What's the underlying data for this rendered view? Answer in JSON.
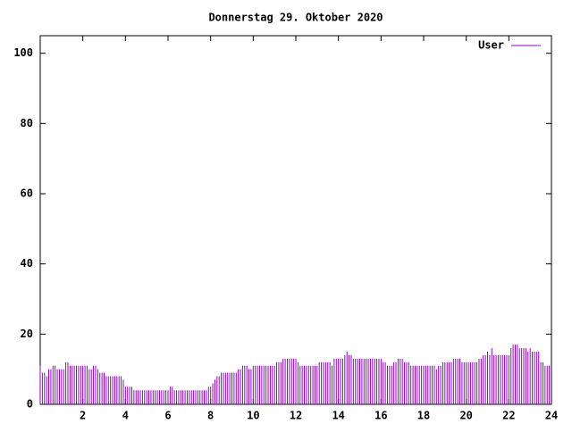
{
  "chart_data": {
    "type": "impulse",
    "title": "Donnerstag 29. Oktober 2020",
    "x": [
      0,
      0.1,
      0.2,
      0.3,
      0.4,
      0.5,
      0.6,
      0.7,
      0.8,
      0.9,
      1,
      1.1,
      1.2,
      1.3,
      1.4,
      1.5,
      1.6,
      1.7,
      1.8,
      1.9,
      2,
      2.1,
      2.2,
      2.3,
      2.4,
      2.5,
      2.6,
      2.7,
      2.8,
      2.9,
      3,
      3.1,
      3.2,
      3.3,
      3.4,
      3.5,
      3.6,
      3.7,
      3.8,
      3.9,
      4,
      4.1,
      4.2,
      4.3,
      4.4,
      4.5,
      4.6,
      4.7,
      4.8,
      4.9,
      5,
      5.1,
      5.2,
      5.3,
      5.4,
      5.5,
      5.6,
      5.7,
      5.8,
      5.9,
      6,
      6.1,
      6.2,
      6.3,
      6.4,
      6.5,
      6.6,
      6.7,
      6.8,
      6.9,
      7,
      7.1,
      7.2,
      7.3,
      7.4,
      7.5,
      7.6,
      7.7,
      7.8,
      7.9,
      8,
      8.1,
      8.2,
      8.3,
      8.4,
      8.5,
      8.6,
      8.7,
      8.8,
      8.9,
      9,
      9.1,
      9.2,
      9.3,
      9.4,
      9.5,
      9.6,
      9.7,
      9.8,
      9.9,
      10,
      10.1,
      10.2,
      10.3,
      10.4,
      10.5,
      10.6,
      10.7,
      10.8,
      10.9,
      11,
      11.1,
      11.2,
      11.3,
      11.4,
      11.5,
      11.6,
      11.7,
      11.8,
      11.9,
      12,
      12.1,
      12.2,
      12.3,
      12.4,
      12.5,
      12.6,
      12.7,
      12.8,
      12.9,
      13,
      13.1,
      13.2,
      13.3,
      13.4,
      13.5,
      13.6,
      13.7,
      13.8,
      13.9,
      14,
      14.1,
      14.2,
      14.3,
      14.4,
      14.5,
      14.6,
      14.7,
      14.8,
      14.9,
      15,
      15.1,
      15.2,
      15.3,
      15.4,
      15.5,
      15.6,
      15.7,
      15.8,
      15.9,
      16,
      16.1,
      16.2,
      16.3,
      16.4,
      16.5,
      16.6,
      16.7,
      16.8,
      16.9,
      17,
      17.1,
      17.2,
      17.3,
      17.4,
      17.5,
      17.6,
      17.7,
      17.8,
      17.9,
      18,
      18.1,
      18.2,
      18.3,
      18.4,
      18.5,
      18.6,
      18.7,
      18.8,
      18.9,
      19,
      19.1,
      19.2,
      19.3,
      19.4,
      19.5,
      19.6,
      19.7,
      19.8,
      19.9,
      20,
      20.1,
      20.2,
      20.3,
      20.4,
      20.5,
      20.6,
      20.7,
      20.8,
      20.9,
      21,
      21.1,
      21.2,
      21.3,
      21.4,
      21.5,
      21.6,
      21.7,
      21.8,
      21.9,
      22,
      22.1,
      22.2,
      22.3,
      22.4,
      22.5,
      22.6,
      22.7,
      22.8,
      22.9,
      23,
      23.1,
      23.2,
      23.3,
      23.4,
      23.5,
      23.6,
      23.7,
      23.8,
      23.9
    ],
    "series": [
      {
        "name": "User",
        "color": "#9400d3",
        "values": [
          11,
          9,
          9,
          8,
          10,
          10,
          11,
          11,
          10,
          10,
          10,
          10,
          12,
          12,
          11,
          11,
          11,
          11,
          11,
          11,
          11,
          11,
          11,
          10,
          10,
          11,
          11,
          10,
          9,
          9,
          9,
          8,
          8,
          8,
          8,
          8,
          8,
          8,
          8,
          7,
          5,
          5,
          5,
          5,
          4,
          4,
          4,
          4,
          4,
          4,
          4,
          4,
          4,
          4,
          4,
          4,
          4,
          4,
          4,
          4,
          4,
          5,
          5,
          4,
          4,
          4,
          4,
          4,
          4,
          4,
          4,
          4,
          4,
          4,
          4,
          4,
          4,
          4,
          4,
          5,
          5,
          6,
          7,
          8,
          8,
          9,
          9,
          9,
          9,
          9,
          9,
          9,
          9,
          10,
          10,
          11,
          11,
          11,
          10,
          10,
          11,
          11,
          11,
          11,
          11,
          11,
          11,
          11,
          11,
          11,
          11,
          12,
          12,
          12,
          13,
          13,
          13,
          13,
          13,
          13,
          13,
          12,
          11,
          11,
          11,
          11,
          11,
          11,
          11,
          11,
          11,
          12,
          12,
          12,
          12,
          12,
          12,
          11,
          13,
          13,
          13,
          13,
          13,
          14,
          15,
          14,
          14,
          13,
          13,
          13,
          13,
          13,
          13,
          13,
          13,
          13,
          13,
          13,
          13,
          13,
          13,
          12,
          12,
          11,
          11,
          11,
          12,
          12,
          13,
          13,
          13,
          12,
          12,
          12,
          11,
          11,
          11,
          11,
          11,
          11,
          11,
          11,
          11,
          11,
          11,
          11,
          10,
          11,
          11,
          12,
          12,
          12,
          12,
          12,
          13,
          13,
          13,
          13,
          12,
          12,
          12,
          12,
          12,
          12,
          12,
          12,
          13,
          13,
          14,
          14,
          15,
          14,
          16,
          14,
          14,
          14,
          14,
          14,
          14,
          14,
          14,
          16,
          17,
          17,
          17,
          16,
          16,
          16,
          16,
          15,
          16,
          15,
          15,
          15,
          15,
          12,
          12,
          11,
          11,
          11
        ]
      }
    ],
    "xlim": [
      0,
      24
    ],
    "xticks": [
      2,
      4,
      6,
      8,
      10,
      12,
      14,
      16,
      18,
      20,
      22,
      24
    ],
    "ylim": [
      0,
      105
    ],
    "yticks": [
      0,
      20,
      40,
      60,
      80,
      100
    ],
    "legend": "top-right"
  }
}
